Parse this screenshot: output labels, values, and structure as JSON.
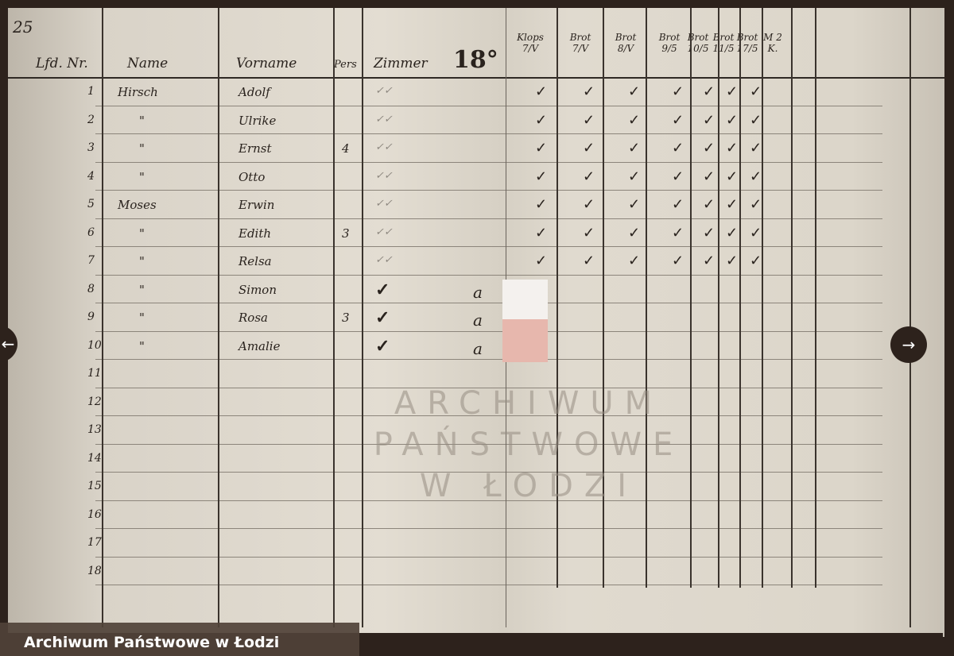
{
  "page_number": "25",
  "headers": {
    "nr": "Lfd. Nr.",
    "name": "Name",
    "vorname": "Vorname",
    "pers": "Pers",
    "zimmer": "Zimmer",
    "zimmer_no": "18°"
  },
  "right_headers": [
    "Klops 7/V",
    "Brot 7/V",
    "Brot 8/V",
    "Brot 9/5",
    "Brot 10/5",
    "Brot 11/5",
    "Brot 17/5",
    "M 2 K."
  ],
  "rows": [
    {
      "nr": "1",
      "name": "Hirsch",
      "vorname": "Adolf",
      "pers": "",
      "mark": "",
      "a": "",
      "checks": 7
    },
    {
      "nr": "2",
      "name": "\"",
      "vorname": "Ulrike",
      "pers": "",
      "mark": "",
      "a": "",
      "checks": 7
    },
    {
      "nr": "3",
      "name": "\"",
      "vorname": "Ernst",
      "pers": "4",
      "mark": "",
      "a": "",
      "checks": 7
    },
    {
      "nr": "4",
      "name": "\"",
      "vorname": "Otto",
      "pers": "",
      "mark": "",
      "a": "",
      "checks": 7
    },
    {
      "nr": "5",
      "name": "Moses",
      "vorname": "Erwin",
      "pers": "",
      "mark": "",
      "a": "",
      "checks": 7
    },
    {
      "nr": "6",
      "name": "\"",
      "vorname": "Edith",
      "pers": "3",
      "mark": "",
      "a": "",
      "checks": 7
    },
    {
      "nr": "7",
      "name": "\"",
      "vorname": "Relsa",
      "pers": "",
      "mark": "",
      "a": "",
      "checks": 7
    },
    {
      "nr": "8",
      "name": "\"",
      "vorname": "Simon",
      "pers": "",
      "mark": "✓",
      "a": "a",
      "checks": 0
    },
    {
      "nr": "9",
      "name": "\"",
      "vorname": "Rosa",
      "pers": "3",
      "mark": "✓",
      "a": "a",
      "checks": 0
    },
    {
      "nr": "10",
      "name": "\"",
      "vorname": "Amalie",
      "pers": "",
      "mark": "✓",
      "a": "a",
      "checks": 0
    },
    {
      "nr": "11"
    },
    {
      "nr": "12"
    },
    {
      "nr": "13"
    },
    {
      "nr": "14"
    },
    {
      "nr": "15"
    },
    {
      "nr": "16"
    },
    {
      "nr": "17"
    },
    {
      "nr": "18"
    }
  ],
  "watermark": {
    "line1": "ARCHIWUM PAŃSTWOWE",
    "line2": "W ŁODZI"
  },
  "caption": "Archiwum Państwowe w Łodzi",
  "nav": {
    "prev": "←",
    "next": "→"
  }
}
